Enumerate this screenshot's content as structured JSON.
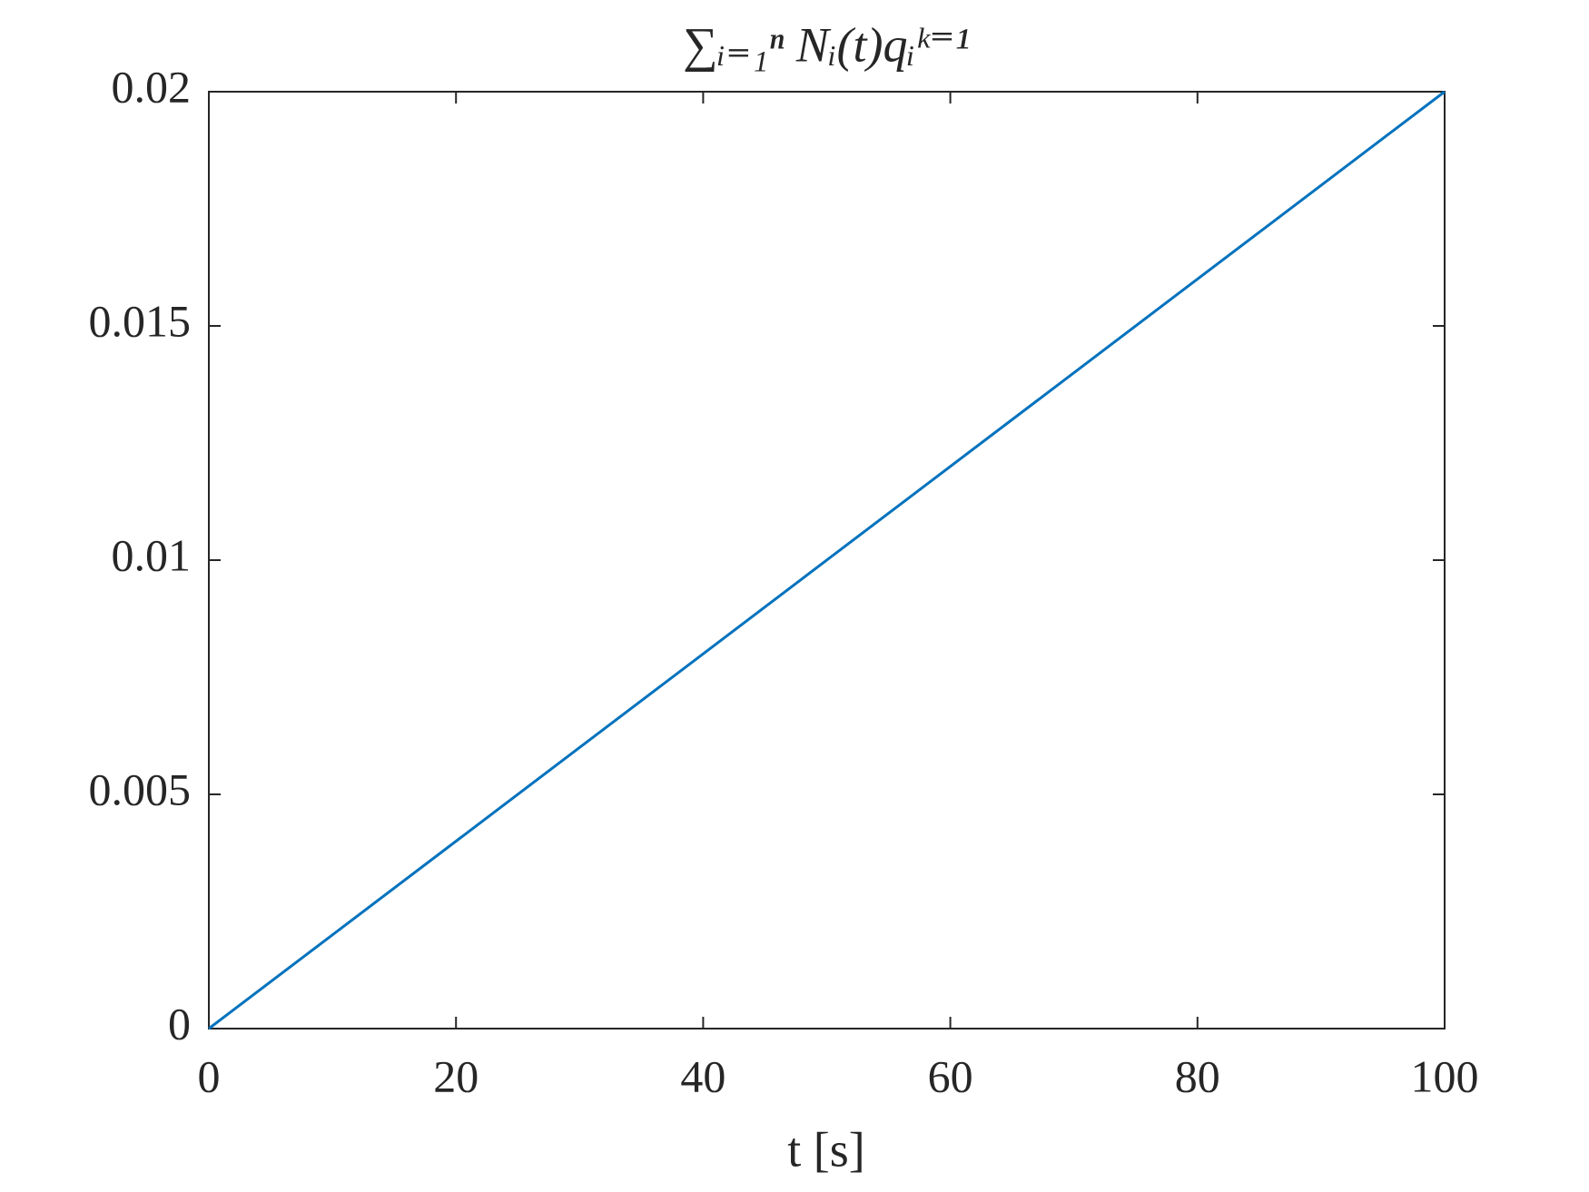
{
  "chart_data": {
    "type": "line",
    "title": "∑ᵢ₌₁ⁿ Nᵢ(t)qᵢᵏ⁼¹",
    "x_label": "t [s]",
    "x": [
      0,
      100
    ],
    "series": [
      {
        "color": "#0072bd",
        "values": [
          0,
          0.02
        ]
      }
    ],
    "xlim": [
      0,
      100
    ],
    "xticks": [
      0,
      20,
      40,
      60,
      80,
      100
    ],
    "ylim": [
      0,
      0.02
    ],
    "yticks": [
      0,
      0.005,
      0.01,
      0.015,
      0.02
    ],
    "grid": false
  }
}
